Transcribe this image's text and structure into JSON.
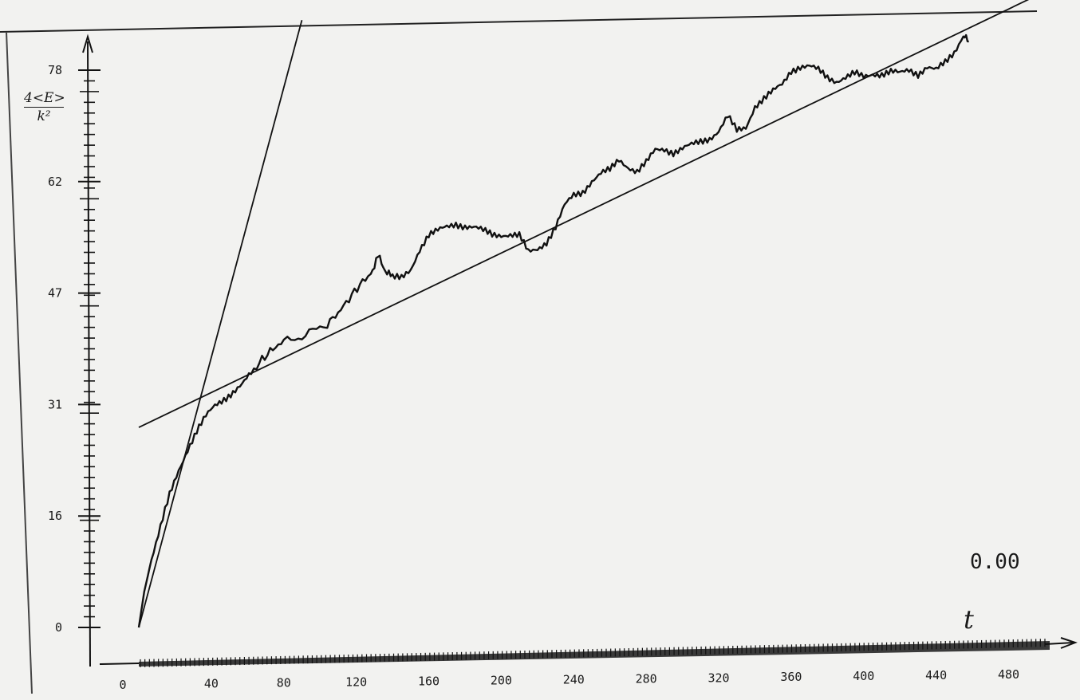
{
  "chart_data": {
    "type": "line",
    "title": "",
    "ylabel": {
      "numerator": "4<E>",
      "denominator": "k²"
    },
    "xlabel": "t",
    "annotation": "0.00",
    "xlim": [
      0,
      500
    ],
    "ylim": [
      0,
      78
    ],
    "x_ticks": [
      "0",
      "40",
      "80",
      "120",
      "160",
      "200",
      "240",
      "280",
      "320",
      "360",
      "400",
      "440",
      "480"
    ],
    "x_tick_values": [
      0,
      40,
      80,
      120,
      160,
      200,
      240,
      280,
      320,
      360,
      400,
      440,
      480
    ],
    "y_ticks": [
      "0",
      "16",
      "31",
      "47",
      "62",
      "78"
    ],
    "y_tick_values": [
      0,
      15.6,
      31.2,
      46.8,
      62.4,
      78
    ],
    "grid": false,
    "series": [
      {
        "kind": "noisy-curve",
        "points": [
          [
            0,
            0
          ],
          [
            3,
            5
          ],
          [
            7,
            9.5
          ],
          [
            12,
            14
          ],
          [
            17,
            18.5
          ],
          [
            22,
            22
          ],
          [
            27,
            25
          ],
          [
            32,
            27.5
          ],
          [
            37,
            29.5
          ],
          [
            42,
            31
          ],
          [
            47,
            32
          ],
          [
            52,
            33
          ],
          [
            57,
            34
          ],
          [
            62,
            35.5
          ],
          [
            68,
            37.5
          ],
          [
            74,
            39
          ],
          [
            80,
            40
          ],
          [
            88,
            40.5
          ],
          [
            96,
            41.5
          ],
          [
            104,
            42.5
          ],
          [
            110,
            44
          ],
          [
            116,
            46
          ],
          [
            122,
            48
          ],
          [
            128,
            49.5
          ],
          [
            132,
            52
          ],
          [
            136,
            50
          ],
          [
            140,
            49
          ],
          [
            145,
            48.8
          ],
          [
            150,
            50
          ],
          [
            155,
            53
          ],
          [
            160,
            55
          ],
          [
            165,
            55.5
          ],
          [
            170,
            56
          ],
          [
            175,
            56.5
          ],
          [
            180,
            56.2
          ],
          [
            185,
            56
          ],
          [
            190,
            55.5
          ],
          [
            195,
            55
          ],
          [
            200,
            55
          ],
          [
            205,
            55
          ],
          [
            210,
            54.8
          ],
          [
            215,
            52.5
          ],
          [
            220,
            53
          ],
          [
            225,
            54
          ],
          [
            230,
            56
          ],
          [
            235,
            59
          ],
          [
            240,
            60.5
          ],
          [
            245,
            61
          ],
          [
            250,
            62.5
          ],
          [
            255,
            63.5
          ],
          [
            260,
            64
          ],
          [
            265,
            65.5
          ],
          [
            270,
            64.5
          ],
          [
            275,
            63.8
          ],
          [
            280,
            65
          ],
          [
            285,
            66.8
          ],
          [
            290,
            67
          ],
          [
            295,
            66.5
          ],
          [
            300,
            67
          ],
          [
            305,
            67.5
          ],
          [
            310,
            68
          ],
          [
            315,
            68.5
          ],
          [
            320,
            69.5
          ],
          [
            325,
            71.5
          ],
          [
            330,
            69.5
          ],
          [
            335,
            70
          ],
          [
            340,
            73
          ],
          [
            345,
            74
          ],
          [
            350,
            75
          ],
          [
            355,
            76
          ],
          [
            360,
            78
          ],
          [
            365,
            78.5
          ],
          [
            370,
            78.5
          ],
          [
            375,
            78
          ],
          [
            380,
            77
          ],
          [
            385,
            76.5
          ],
          [
            390,
            77
          ],
          [
            395,
            77.5
          ],
          [
            400,
            77
          ],
          [
            405,
            77.5
          ],
          [
            410,
            77.5
          ],
          [
            415,
            77.8
          ],
          [
            420,
            77.5
          ],
          [
            425,
            78
          ],
          [
            430,
            77.5
          ],
          [
            435,
            78.5
          ],
          [
            440,
            78
          ],
          [
            445,
            79
          ],
          [
            450,
            80.5
          ],
          [
            455,
            83
          ],
          [
            458,
            82
          ]
        ]
      },
      {
        "kind": "straight-line",
        "points": [
          [
            0,
            28
          ],
          [
            500,
            89
          ]
        ]
      },
      {
        "kind": "straight-line",
        "points": [
          [
            0,
            0
          ],
          [
            90,
            85
          ]
        ]
      }
    ]
  }
}
